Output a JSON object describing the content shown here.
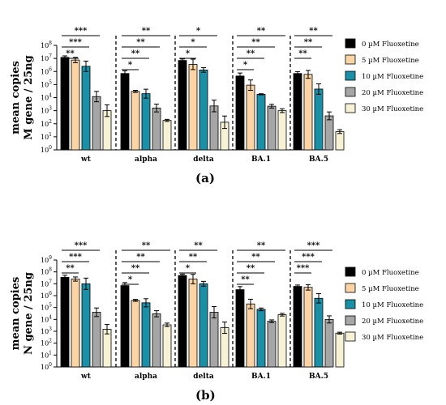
{
  "figure": {
    "panel_labels": [
      "(a)",
      "(b)"
    ]
  },
  "chart_data": [
    {
      "type": "bar",
      "panel": "(a)",
      "title": "",
      "xlabel": "",
      "ylabel": [
        "mean copies",
        "M gene / 25ng"
      ],
      "log_scale": true,
      "ylim": [
        1,
        100000000
      ],
      "yticks": [
        "10^0",
        "10^1",
        "10^2",
        "10^3",
        "10^4",
        "10^5",
        "10^6",
        "10^7",
        "10^8"
      ],
      "grid": false,
      "legend_position": "right",
      "categories": [
        "wt",
        "alpha",
        "delta",
        "BA.1",
        "BA.5"
      ],
      "series": [
        {
          "name": "0 µM Fluoxetine",
          "color": "#000000",
          "values": [
            12000000,
            700000,
            7000000,
            450000,
            700000
          ],
          "errors": [
            1.3,
            1.6,
            1.3,
            1.7,
            1.4
          ]
        },
        {
          "name": "5 µM Fluoxetine",
          "color": "#fbd4a6",
          "values": [
            7500000,
            30000,
            3500000,
            90000,
            600000
          ],
          "errors": [
            1.6,
            1.2,
            2.5,
            2.5,
            2.0
          ]
        },
        {
          "name": "10 µM Fluoxetine",
          "color": "#1a8fa6",
          "values": [
            2500000,
            20000,
            1300000,
            18000,
            45000
          ],
          "errors": [
            2.5,
            2.2,
            1.5,
            1.1,
            2.5
          ]
        },
        {
          "name": "20 µM Fluoxetine",
          "color": "#a6a6a6",
          "values": [
            12000,
            1600,
            2300,
            2200,
            400
          ],
          "errors": [
            2.5,
            2.0,
            2.8,
            1.4,
            2.0
          ]
        },
        {
          "name": "30 µM Fluoxetine",
          "color": "#f7f2d6",
          "values": [
            1000,
            180,
            130,
            1000,
            25
          ],
          "errors": [
            2.8,
            1.2,
            3.0,
            1.4,
            1.4
          ]
        }
      ],
      "significance": [
        {
          "category": "wt",
          "labels": [
            "***",
            "***",
            "**"
          ]
        },
        {
          "category": "alpha",
          "labels": [
            "**",
            "**",
            "**",
            "*"
          ]
        },
        {
          "category": "delta",
          "labels": [
            "*",
            "*",
            "*"
          ]
        },
        {
          "category": "BA.1",
          "labels": [
            "**",
            "**",
            "**",
            "*"
          ]
        },
        {
          "category": "BA.5",
          "labels": [
            "**",
            "**",
            "**"
          ]
        }
      ]
    },
    {
      "type": "bar",
      "panel": "(b)",
      "title": "",
      "xlabel": "",
      "ylabel": [
        "mean copies",
        "N gene / 25ng"
      ],
      "log_scale": true,
      "ylim": [
        1,
        1000000000
      ],
      "yticks": [
        "10^0",
        "10^1",
        "10^2",
        "10^3",
        "10^4",
        "10^5",
        "10^6",
        "10^7",
        "10^8",
        "10^9"
      ],
      "grid": false,
      "legend_position": "right",
      "categories": [
        "wt",
        "alpha",
        "delta",
        "BA.1",
        "BA.5"
      ],
      "series": [
        {
          "name": "0 µM Fluoxetine",
          "color": "#000000",
          "values": [
            35000000,
            7000000,
            50000000,
            3200000,
            6000000
          ],
          "errors": [
            1.5,
            1.8,
            1.3,
            1.8,
            1.3
          ]
        },
        {
          "name": "5 µM Fluoxetine",
          "color": "#fbd4a6",
          "values": [
            25000000,
            400000,
            25000000,
            200000,
            5000000
          ],
          "errors": [
            1.5,
            1.2,
            2.5,
            2.5,
            1.7
          ]
        },
        {
          "name": "10 µM Fluoxetine",
          "color": "#1a8fa6",
          "values": [
            10000000,
            250000,
            10000000,
            70000,
            600000
          ],
          "errors": [
            3.0,
            2.2,
            1.6,
            1.3,
            2.5
          ]
        },
        {
          "name": "20 µM Fluoxetine",
          "color": "#a6a6a6",
          "values": [
            40000,
            30000,
            40000,
            7000,
            10000
          ],
          "errors": [
            2.3,
            1.8,
            3.0,
            1.3,
            2.0
          ]
        },
        {
          "name": "30 µM Fluoxetine",
          "color": "#f7f2d6",
          "values": [
            1500,
            3500,
            2000,
            25000,
            700
          ],
          "errors": [
            2.5,
            1.4,
            3.0,
            1.3,
            1.2
          ]
        }
      ],
      "significance": [
        {
          "category": "wt",
          "labels": [
            "***",
            "***",
            "**"
          ]
        },
        {
          "category": "alpha",
          "labels": [
            "**",
            "**",
            "**",
            "*"
          ]
        },
        {
          "category": "delta",
          "labels": [
            "**",
            "**",
            "*"
          ]
        },
        {
          "category": "BA.1",
          "labels": [
            "**",
            "**",
            "**",
            "**"
          ]
        },
        {
          "category": "BA.5",
          "labels": [
            "***",
            "***",
            "***"
          ]
        }
      ]
    }
  ]
}
